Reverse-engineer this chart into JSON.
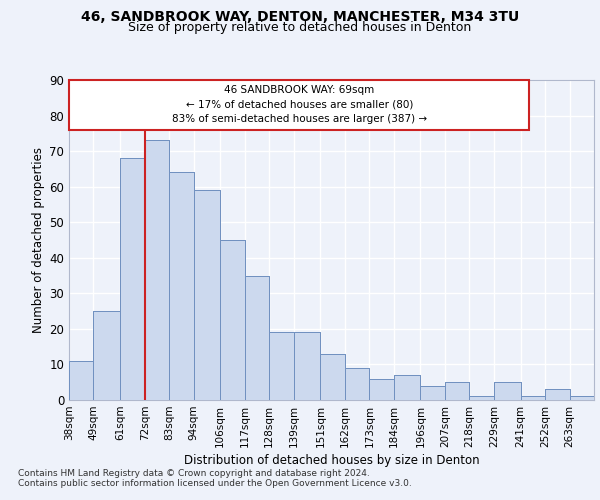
{
  "title_line1": "46, SANDBROOK WAY, DENTON, MANCHESTER, M34 3TU",
  "title_line2": "Size of property relative to detached houses in Denton",
  "xlabel": "Distribution of detached houses by size in Denton",
  "ylabel": "Number of detached properties",
  "categories": [
    "38sqm",
    "49sqm",
    "61sqm",
    "72sqm",
    "83sqm",
    "94sqm",
    "106sqm",
    "117sqm",
    "128sqm",
    "139sqm",
    "151sqm",
    "162sqm",
    "173sqm",
    "184sqm",
    "196sqm",
    "207sqm",
    "218sqm",
    "229sqm",
    "241sqm",
    "252sqm",
    "263sqm"
  ],
  "values": [
    11,
    25,
    68,
    73,
    64,
    59,
    45,
    35,
    19,
    19,
    13,
    9,
    6,
    7,
    4,
    5,
    1,
    5,
    1,
    3,
    1
  ],
  "bar_color": "#ccd9ee",
  "bar_edge_color": "#7090c0",
  "background_color": "#eef2fa",
  "grid_color": "#ffffff",
  "annotation_text_line1": "46 SANDBROOK WAY: 69sqm",
  "annotation_text_line2": "← 17% of detached houses are smaller (80)",
  "annotation_text_line3": "83% of semi-detached houses are larger (387) →",
  "annotation_border_color": "#cc2222",
  "vline_color": "#cc2222",
  "ylim": [
    0,
    90
  ],
  "yticks": [
    0,
    10,
    20,
    30,
    40,
    50,
    60,
    70,
    80,
    90
  ],
  "footnote1": "Contains HM Land Registry data © Crown copyright and database right 2024.",
  "footnote2": "Contains public sector information licensed under the Open Government Licence v3.0.",
  "bin_edges": [
    38,
    49,
    61,
    72,
    83,
    94,
    106,
    117,
    128,
    139,
    151,
    162,
    173,
    184,
    196,
    207,
    218,
    229,
    241,
    252,
    263,
    274
  ]
}
